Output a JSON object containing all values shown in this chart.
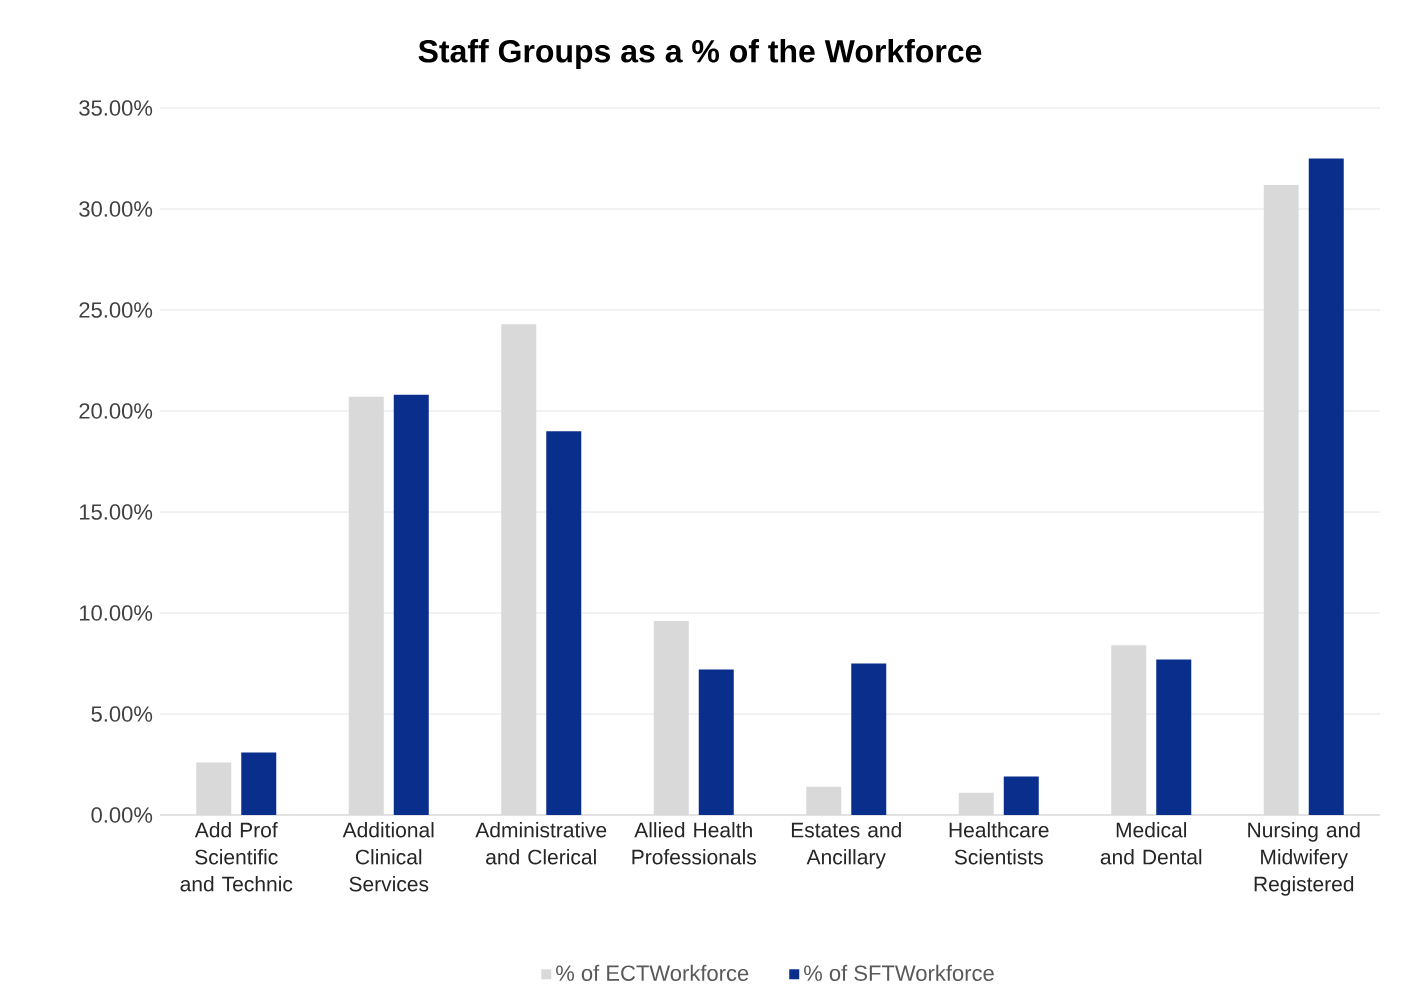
{
  "chart_data": {
    "type": "bar",
    "title": "Staff Groups as a % of the Workforce",
    "categories": [
      "Add Prof Scientific and Technic",
      "Additional Clinical Services",
      "Administrative and Clerical",
      "Allied Health Professionals",
      "Estates and Ancillary",
      "Healthcare Scientists",
      "Medical and Dental",
      "Nursing and Midwifery Registered"
    ],
    "series": [
      {
        "name": "% of ECTWorkforce",
        "color": "#d9d9d9",
        "values": [
          2.6,
          20.7,
          24.3,
          9.6,
          1.4,
          1.1,
          8.4,
          31.2
        ]
      },
      {
        "name": "% of SFTWorkforce",
        "color": "#0a2e8c",
        "values": [
          3.1,
          20.8,
          19.0,
          7.2,
          7.5,
          1.9,
          7.7,
          32.5
        ]
      }
    ],
    "ylim": [
      0,
      35
    ],
    "yticks": [
      {
        "value": 0,
        "label": "0.00%"
      },
      {
        "value": 5,
        "label": "5.00%"
      },
      {
        "value": 10,
        "label": "10.00%"
      },
      {
        "value": 15,
        "label": "15.00%"
      },
      {
        "value": 20,
        "label": "20.00%"
      },
      {
        "value": 25,
        "label": "25.00%"
      },
      {
        "value": 30,
        "label": "30.00%"
      },
      {
        "value": 35,
        "label": "35.00%"
      }
    ],
    "grid": "y",
    "legend": "bottom"
  }
}
